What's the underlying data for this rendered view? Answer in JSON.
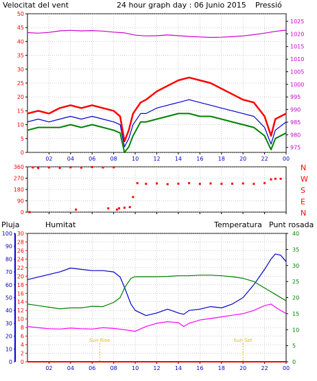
{
  "colors": {
    "wind_speed": "#ff0000",
    "wind_avg": "#0000cc",
    "wind_low": "#008000",
    "pressure": "#cc00cc",
    "direction": "#ff0000",
    "rain": "#ff0000",
    "humidity": "#0000cc",
    "temperature": "#008000",
    "dewpoint": "#ff00ff",
    "sun": "#d8c000",
    "axis": "#000000",
    "grid": "#9a9a9a",
    "hour_label": "#0000cc"
  },
  "header": {
    "wind_label": "Velocitat del vent",
    "title": "24 hour graph day : 06 Junio 2015",
    "pressure_label": "Pressió"
  },
  "bottom_header": {
    "rain_label": "Pluja",
    "humidity_label": "Humitat",
    "temperature_label": "Temperatura",
    "dewpoint_label": "Punt rosada"
  },
  "direction_labels": [
    "N",
    "W",
    "S",
    "E",
    "N"
  ],
  "sun_labels": {
    "rise": "Sun Rise",
    "set": "Sun Set",
    "rise_hour": 6.7,
    "set_hour": 20.0
  },
  "hour_axis": [
    "02",
    "04",
    "06",
    "08",
    "10",
    "12",
    "14",
    "16",
    "18",
    "20",
    "22",
    "00"
  ],
  "chart_data": [
    {
      "type": "line",
      "name": "wind_pressure",
      "x_range_hours": [
        0,
        24
      ],
      "y_left": {
        "ticks": [
          0,
          5,
          10,
          15,
          20,
          25,
          30,
          35,
          40,
          45,
          50
        ],
        "range": [
          0,
          50
        ]
      },
      "y_right": {
        "ticks": [
          975,
          980,
          985,
          990,
          995,
          1000,
          1005,
          1010,
          1015,
          1020,
          1025
        ],
        "range": [
          973,
          1028
        ]
      },
      "series": [
        {
          "key": "gust",
          "points": [
            [
              0,
              14
            ],
            [
              1,
              15
            ],
            [
              2,
              14
            ],
            [
              3,
              16
            ],
            [
              4,
              17
            ],
            [
              5,
              16
            ],
            [
              6,
              17
            ],
            [
              7,
              16
            ],
            [
              8,
              15
            ],
            [
              8.6,
              13
            ],
            [
              9,
              4
            ],
            [
              9.4,
              8
            ],
            [
              9.8,
              14
            ],
            [
              10.5,
              18
            ],
            [
              11,
              19
            ],
            [
              12,
              22
            ],
            [
              13,
              24
            ],
            [
              14,
              26
            ],
            [
              15,
              27
            ],
            [
              16,
              26
            ],
            [
              17,
              25
            ],
            [
              18,
              23
            ],
            [
              19,
              21
            ],
            [
              20,
              19
            ],
            [
              21,
              18
            ],
            [
              22,
              13
            ],
            [
              22.6,
              6
            ],
            [
              23,
              12
            ],
            [
              24,
              14
            ]
          ]
        },
        {
          "key": "average",
          "points": [
            [
              0,
              11
            ],
            [
              1,
              12
            ],
            [
              2,
              11
            ],
            [
              3,
              12
            ],
            [
              4,
              13
            ],
            [
              5,
              12
            ],
            [
              6,
              13
            ],
            [
              7,
              12
            ],
            [
              8,
              11
            ],
            [
              8.6,
              10
            ],
            [
              9,
              2
            ],
            [
              9.4,
              5
            ],
            [
              9.8,
              10
            ],
            [
              10.5,
              14
            ],
            [
              11,
              14
            ],
            [
              12,
              16
            ],
            [
              13,
              17
            ],
            [
              14,
              18
            ],
            [
              15,
              19
            ],
            [
              16,
              18
            ],
            [
              17,
              17
            ],
            [
              18,
              16
            ],
            [
              19,
              15
            ],
            [
              20,
              14
            ],
            [
              21,
              13
            ],
            [
              22,
              9
            ],
            [
              22.6,
              3
            ],
            [
              23,
              8
            ],
            [
              24,
              11
            ]
          ]
        },
        {
          "key": "low",
          "points": [
            [
              0,
              8
            ],
            [
              1,
              9
            ],
            [
              2,
              9
            ],
            [
              3,
              9
            ],
            [
              4,
              10
            ],
            [
              5,
              9
            ],
            [
              6,
              10
            ],
            [
              7,
              9
            ],
            [
              8,
              8
            ],
            [
              8.6,
              7
            ],
            [
              9,
              0
            ],
            [
              9.4,
              2
            ],
            [
              9.8,
              6
            ],
            [
              10.5,
              11
            ],
            [
              11,
              11
            ],
            [
              12,
              12
            ],
            [
              13,
              13
            ],
            [
              14,
              14
            ],
            [
              15,
              14
            ],
            [
              16,
              13
            ],
            [
              17,
              13
            ],
            [
              18,
              12
            ],
            [
              19,
              11
            ],
            [
              20,
              10
            ],
            [
              21,
              9
            ],
            [
              22,
              6
            ],
            [
              22.6,
              1
            ],
            [
              23,
              5
            ],
            [
              24,
              7
            ]
          ]
        },
        {
          "key": "pressure",
          "points": [
            [
              0,
              1020.5
            ],
            [
              1,
              1020.3
            ],
            [
              2,
              1020.6
            ],
            [
              3,
              1021.2
            ],
            [
              4,
              1021.4
            ],
            [
              5,
              1021.2
            ],
            [
              6,
              1021.3
            ],
            [
              7,
              1021.1
            ],
            [
              8,
              1020.7
            ],
            [
              9,
              1020.4
            ],
            [
              10,
              1019.5
            ],
            [
              11,
              1019.2
            ],
            [
              12,
              1019.3
            ],
            [
              13,
              1019.6
            ],
            [
              14,
              1019.3
            ],
            [
              15,
              1019.0
            ],
            [
              16,
              1018.8
            ],
            [
              17,
              1018.6
            ],
            [
              18,
              1018.7
            ],
            [
              19,
              1018.9
            ],
            [
              20,
              1019.2
            ],
            [
              21,
              1019.7
            ],
            [
              22,
              1020.3
            ],
            [
              23,
              1021.0
            ],
            [
              24,
              1021.5
            ]
          ]
        }
      ]
    },
    {
      "type": "scatter",
      "name": "wind_direction",
      "x_range_hours": [
        0,
        24
      ],
      "y_ticks": [
        0,
        90,
        180,
        270,
        360
      ],
      "y_range": [
        0,
        360
      ],
      "series": [
        {
          "key": "direction",
          "points": [
            [
              0.2,
              0
            ],
            [
              0.5,
              355
            ],
            [
              1,
              350
            ],
            [
              2,
              355
            ],
            [
              3,
              352
            ],
            [
              4,
              356
            ],
            [
              5,
              354
            ],
            [
              6,
              358
            ],
            [
              7,
              355
            ],
            [
              8,
              356
            ],
            [
              8.3,
              20
            ],
            [
              8.5,
              30
            ],
            [
              9,
              35
            ],
            [
              9.5,
              40
            ],
            [
              9.8,
              120
            ],
            [
              10.2,
              230
            ],
            [
              11,
              225
            ],
            [
              12,
              228
            ],
            [
              13,
              222
            ],
            [
              14,
              226
            ],
            [
              15,
              230
            ],
            [
              16,
              224
            ],
            [
              17,
              228
            ],
            [
              18,
              225
            ],
            [
              19,
              226
            ],
            [
              20,
              228
            ],
            [
              21,
              224
            ],
            [
              22,
              230
            ],
            [
              22.6,
              260
            ],
            [
              23,
              265
            ],
            [
              23.5,
              265
            ],
            [
              4.5,
              20
            ],
            [
              7.5,
              30
            ]
          ]
        }
      ]
    },
    {
      "type": "line",
      "name": "humidity_temperature",
      "x_range_hours": [
        0,
        24
      ],
      "y_rain": {
        "ticks": [
          0,
          2,
          4,
          6,
          8,
          10,
          12,
          14,
          16,
          18,
          20,
          22,
          24,
          26,
          28,
          30
        ],
        "range": [
          0,
          30
        ]
      },
      "y_humidity": {
        "ticks": [
          0,
          10,
          20,
          30,
          40,
          50,
          60,
          70,
          80,
          90,
          100
        ],
        "range": [
          0,
          100
        ]
      },
      "y_temperature": {
        "ticks": [
          0,
          5,
          10,
          15,
          20,
          25,
          30,
          35,
          40
        ],
        "range": [
          0,
          40
        ]
      },
      "series": [
        {
          "key": "rain",
          "points": [
            [
              0,
              0
            ],
            [
              24,
              0
            ]
          ]
        },
        {
          "key": "humidity",
          "points": [
            [
              0,
              64
            ],
            [
              1,
              66
            ],
            [
              2,
              68
            ],
            [
              3,
              70
            ],
            [
              4,
              73
            ],
            [
              5,
              72
            ],
            [
              6,
              71
            ],
            [
              7,
              71
            ],
            [
              8,
              70
            ],
            [
              8.6,
              66
            ],
            [
              9,
              58
            ],
            [
              9.6,
              45
            ],
            [
              10,
              40
            ],
            [
              11,
              36
            ],
            [
              12,
              38
            ],
            [
              13,
              41
            ],
            [
              14,
              38
            ],
            [
              14.5,
              37
            ],
            [
              15,
              40
            ],
            [
              16,
              41
            ],
            [
              17,
              43
            ],
            [
              18,
              42
            ],
            [
              19,
              45
            ],
            [
              20,
              50
            ],
            [
              21,
              60
            ],
            [
              22,
              72
            ],
            [
              22.6,
              80
            ],
            [
              23,
              84
            ],
            [
              23.5,
              83
            ],
            [
              24,
              78
            ]
          ]
        },
        {
          "key": "temperature",
          "points": [
            [
              0,
              18
            ],
            [
              1,
              17.5
            ],
            [
              2,
              17
            ],
            [
              3,
              16.5
            ],
            [
              4,
              16.8
            ],
            [
              5,
              16.8
            ],
            [
              6,
              17.3
            ],
            [
              7,
              17.2
            ],
            [
              8,
              18.5
            ],
            [
              8.6,
              20
            ],
            [
              9,
              23
            ],
            [
              9.6,
              26
            ],
            [
              10,
              26.5
            ],
            [
              11,
              26.5
            ],
            [
              12,
              26.5
            ],
            [
              13,
              26.6
            ],
            [
              14,
              26.8
            ],
            [
              15,
              26.8
            ],
            [
              16,
              27
            ],
            [
              17,
              27
            ],
            [
              18,
              26.8
            ],
            [
              19,
              26.5
            ],
            [
              20,
              26
            ],
            [
              21,
              25
            ],
            [
              22,
              23
            ],
            [
              23,
              21
            ],
            [
              24,
              19
            ]
          ]
        },
        {
          "key": "dewpoint",
          "points": [
            [
              0,
              11
            ],
            [
              1,
              10.6
            ],
            [
              2,
              10.3
            ],
            [
              3,
              10.2
            ],
            [
              4,
              10.5
            ],
            [
              5,
              10.3
            ],
            [
              6,
              10.2
            ],
            [
              7,
              10.6
            ],
            [
              8,
              10.4
            ],
            [
              9,
              10
            ],
            [
              10,
              9.5
            ],
            [
              11,
              11
            ],
            [
              12,
              12
            ],
            [
              13,
              12.5
            ],
            [
              14,
              12.2
            ],
            [
              14.5,
              11
            ],
            [
              15,
              12
            ],
            [
              16,
              13
            ],
            [
              17,
              13.5
            ],
            [
              18,
              14
            ],
            [
              19,
              14.5
            ],
            [
              20,
              15
            ],
            [
              21,
              16
            ],
            [
              22,
              17.5
            ],
            [
              22.6,
              18
            ],
            [
              23,
              17
            ],
            [
              24,
              15
            ]
          ]
        }
      ]
    }
  ]
}
